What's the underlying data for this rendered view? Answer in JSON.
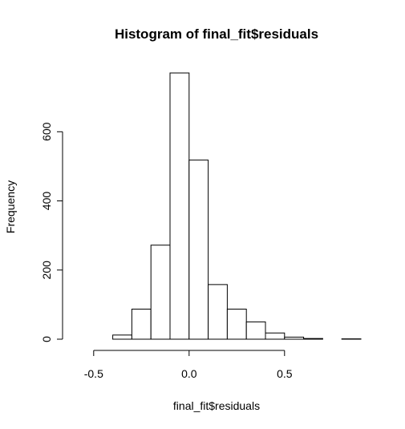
{
  "chart_data": {
    "type": "bar",
    "subtype": "histogram",
    "title": "Histogram of final_fit$residuals",
    "xlabel": "final_fit$residuals",
    "ylabel": "Frequency",
    "bins": [
      {
        "start": -0.6,
        "end": -0.5,
        "count": 0
      },
      {
        "start": -0.5,
        "end": -0.4,
        "count": 0
      },
      {
        "start": -0.4,
        "end": -0.3,
        "count": 12
      },
      {
        "start": -0.3,
        "end": -0.2,
        "count": 87
      },
      {
        "start": -0.2,
        "end": -0.1,
        "count": 272
      },
      {
        "start": -0.1,
        "end": 0.0,
        "count": 770
      },
      {
        "start": 0.0,
        "end": 0.1,
        "count": 518
      },
      {
        "start": 0.1,
        "end": 0.2,
        "count": 158
      },
      {
        "start": 0.2,
        "end": 0.3,
        "count": 87
      },
      {
        "start": 0.3,
        "end": 0.4,
        "count": 50
      },
      {
        "start": 0.4,
        "end": 0.5,
        "count": 18
      },
      {
        "start": 0.5,
        "end": 0.6,
        "count": 6
      },
      {
        "start": 0.6,
        "end": 0.7,
        "count": 2
      },
      {
        "start": 0.7,
        "end": 0.8,
        "count": 0
      },
      {
        "start": 0.8,
        "end": 0.9,
        "count": 1
      }
    ],
    "xlim": [
      -0.6,
      0.9
    ],
    "ylim": [
      0,
      770
    ],
    "xticks": [
      -0.5,
      0.0,
      0.5
    ],
    "xtick_labels": [
      "-0.5",
      "0.0",
      "0.5"
    ],
    "yticks": [
      0,
      200,
      400,
      600
    ],
    "ytick_labels": [
      "0",
      "200",
      "400",
      "600"
    ],
    "grid": false,
    "legend": "none",
    "colors": {
      "bar_fill": "#ffffff",
      "bar_stroke": "#000000",
      "text": "#000000"
    }
  }
}
